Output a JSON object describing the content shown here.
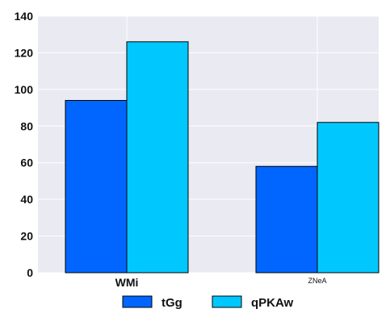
{
  "chart_data": {
    "type": "bar",
    "categories": [
      "WMi",
      "ZNeA"
    ],
    "series": [
      {
        "name": "tGg",
        "values": [
          94,
          58
        ],
        "color": "#0066ff"
      },
      {
        "name": "qPKAw",
        "values": [
          126,
          82
        ],
        "color": "#00c8ff"
      }
    ],
    "ylim": [
      0,
      140
    ],
    "yticks": [
      0,
      20,
      40,
      60,
      80,
      100,
      120,
      140
    ],
    "title": "",
    "xlabel": "",
    "ylabel": "",
    "grid": true,
    "legend_position": "bottom-center",
    "plot_background": "#eaeaf2",
    "grid_color": "#ffffff"
  }
}
